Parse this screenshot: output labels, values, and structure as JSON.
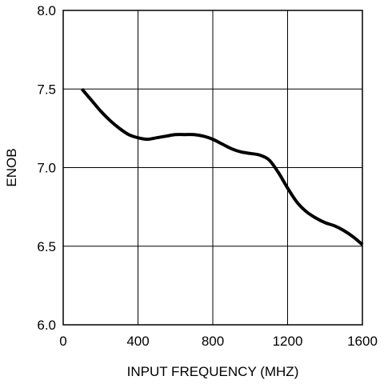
{
  "chart_data": {
    "type": "line",
    "title": "",
    "xlabel": "INPUT FREQUENCY (MHZ)",
    "ylabel": "ENOB",
    "xlim": [
      0,
      1600
    ],
    "ylim": [
      6.0,
      8.0
    ],
    "grid": true,
    "xticks": [
      0,
      400,
      800,
      1200,
      1600
    ],
    "yticks": [
      6.0,
      6.5,
      7.0,
      7.5,
      8.0
    ],
    "xtick_labels": [
      "0",
      "400",
      "800",
      "1200",
      "1600"
    ],
    "ytick_labels": [
      "6.0",
      "6.5",
      "7.0",
      "7.5",
      "8.0"
    ],
    "series": [
      {
        "color": "#000000",
        "x": [
          100,
          150,
          200,
          250,
          300,
          350,
          400,
          450,
          500,
          550,
          600,
          650,
          700,
          750,
          800,
          850,
          900,
          950,
          1000,
          1050,
          1100,
          1150,
          1200,
          1250,
          1300,
          1350,
          1400,
          1450,
          1500,
          1550,
          1600
        ],
        "y": [
          7.5,
          7.43,
          7.36,
          7.3,
          7.25,
          7.21,
          7.19,
          7.18,
          7.19,
          7.2,
          7.21,
          7.21,
          7.21,
          7.2,
          7.18,
          7.15,
          7.12,
          7.1,
          7.09,
          7.08,
          7.05,
          6.97,
          6.87,
          6.78,
          6.72,
          6.68,
          6.65,
          6.63,
          6.6,
          6.56,
          6.51
        ]
      }
    ]
  }
}
